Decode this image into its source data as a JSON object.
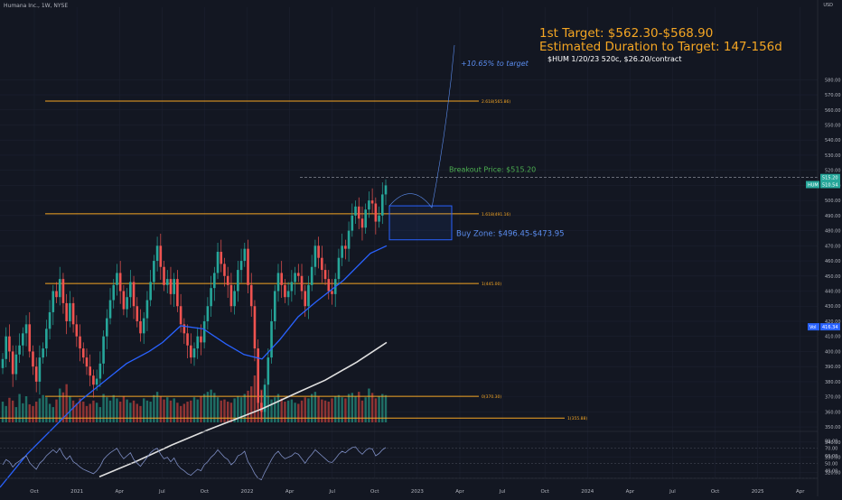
{
  "header": {
    "symbol_title": "Humana Inc., 1W, NYSE",
    "currency": "USD"
  },
  "annotations": {
    "target": "1st Target: $562.30-$568.90",
    "duration": "Estimated Duration to Target: 147-156d",
    "option": "$HUM 1/20/23 520c, $26.20/contract",
    "percent": "+10.65% to target",
    "breakout": "Breakout Price: $515.20",
    "buy_zone": "Buy Zone: $496.45-$473.95"
  },
  "colors": {
    "background": "#131722",
    "fib": "#f5a623",
    "up": "#26a69a",
    "down": "#ef5350",
    "ma_fast": "#2962ff",
    "ma_slow": "#e0e0e0",
    "buy_zone": "#2962ff",
    "breakout": "#4caf50",
    "rsi": "#7e8ec4"
  },
  "chart_data": {
    "type": "candlestick",
    "symbol": "HUM",
    "interval": "1W",
    "ylim": [
      312,
      583
    ],
    "y_ticks": [
      320,
      330,
      340,
      350,
      360,
      370,
      380,
      390,
      400,
      410,
      420,
      430,
      440,
      450,
      460,
      470,
      480,
      490,
      500,
      510,
      520,
      530,
      540,
      550,
      560,
      570,
      580
    ],
    "x_ticks": [
      "Oct",
      "2021",
      "Apr",
      "Jul",
      "Oct",
      "2022",
      "Apr",
      "Jul",
      "Oct",
      "2023",
      "Apr",
      "Jul",
      "Oct",
      "2024",
      "Apr",
      "Jul",
      "Oct",
      "2025",
      "Apr"
    ],
    "fib_levels": [
      {
        "label": "2.618(565.86)",
        "value": 565.86
      },
      {
        "label": "1.618(491.16)",
        "value": 491.16
      },
      {
        "label": "1(445.00)",
        "value": 445.0
      },
      {
        "label": "0(370.30)",
        "value": 370.3
      },
      {
        "label": "1(355.88)",
        "value": 355.88
      }
    ],
    "price_labels": [
      {
        "label": "515.20",
        "value": 515.2
      },
      {
        "label": "510.54",
        "value": 510.54
      },
      {
        "label": "HUM",
        "value": 510.54
      },
      {
        "label": "416.34",
        "value": 416.34
      },
      {
        "label": "Vol",
        "value": 416.34
      }
    ],
    "breakout_price": 515.2,
    "buy_zone": [
      473.95,
      496.45
    ],
    "closes": [
      395,
      410,
      400,
      385,
      398,
      404,
      412,
      418,
      400,
      390,
      380,
      396,
      402,
      415,
      426,
      440,
      436,
      448,
      432,
      420,
      432,
      418,
      410,
      402,
      396,
      390,
      384,
      378,
      382,
      392,
      410,
      422,
      434,
      444,
      452,
      440,
      428,
      436,
      446,
      430,
      420,
      412,
      422,
      434,
      446,
      460,
      470,
      456,
      444,
      448,
      438,
      448,
      430,
      418,
      412,
      404,
      396,
      402,
      410,
      406,
      420,
      430,
      442,
      452,
      466,
      458,
      450,
      444,
      430,
      440,
      454,
      460,
      468,
      444,
      430,
      402,
      366,
      360,
      378,
      396,
      420,
      440,
      452,
      444,
      436,
      440,
      446,
      452,
      450,
      440,
      430,
      444,
      456,
      470,
      462,
      454,
      448,
      440,
      438,
      448,
      462,
      470,
      468,
      480,
      490,
      496,
      488,
      482,
      494,
      500,
      498,
      486,
      490,
      504,
      510
    ],
    "ma_fast": [
      [
        0,
        310
      ],
      [
        30,
        332
      ],
      [
        60,
        350
      ],
      [
        90,
        368
      ],
      [
        115,
        380
      ],
      [
        140,
        392
      ],
      [
        165,
        400
      ],
      [
        180,
        406
      ],
      [
        200,
        417
      ],
      [
        225,
        415
      ],
      [
        250,
        405
      ],
      [
        270,
        398
      ],
      [
        290,
        395
      ],
      [
        310,
        408
      ],
      [
        330,
        423
      ],
      [
        350,
        433
      ],
      [
        380,
        447
      ],
      [
        410,
        465
      ],
      [
        428,
        470
      ]
    ],
    "ma_slow": [
      [
        110,
        317
      ],
      [
        150,
        327
      ],
      [
        190,
        338
      ],
      [
        230,
        348
      ],
      [
        260,
        355
      ],
      [
        290,
        362
      ],
      [
        330,
        373
      ],
      [
        360,
        381
      ],
      [
        395,
        393
      ],
      [
        428,
        406
      ]
    ],
    "volume": [
      38,
      30,
      45,
      40,
      28,
      52,
      35,
      48,
      33,
      30,
      38,
      44,
      50,
      46,
      34,
      28,
      42,
      62,
      55,
      70,
      48,
      40,
      35,
      44,
      38,
      30,
      34,
      40,
      36,
      28,
      52,
      46,
      40,
      50,
      44,
      38,
      48,
      42,
      36,
      40,
      34,
      30,
      44,
      40,
      38,
      50,
      56,
      48,
      42,
      46,
      40,
      44,
      36,
      30,
      34,
      38,
      40,
      46,
      42,
      48,
      52,
      56,
      60,
      54,
      46,
      40,
      42,
      38,
      36,
      44,
      48,
      46,
      52,
      58,
      66,
      86,
      72,
      60,
      54,
      48,
      42,
      46,
      52,
      44,
      38,
      40,
      42,
      36,
      34,
      40,
      46,
      44,
      52,
      56,
      48,
      42,
      40,
      38,
      44,
      48,
      50,
      46,
      44,
      52,
      54,
      48,
      56,
      40,
      46,
      62,
      54,
      44,
      48,
      52,
      50
    ],
    "rsi": {
      "ticks": [
        80.0,
        70.0,
        60.0,
        50.0,
        40.0
      ],
      "levels": [
        70,
        50,
        30
      ],
      "values": [
        48,
        55,
        52,
        45,
        50,
        53,
        57,
        60,
        51,
        46,
        42,
        50,
        54,
        60,
        64,
        68,
        64,
        70,
        61,
        55,
        60,
        52,
        49,
        45,
        42,
        40,
        38,
        36,
        40,
        46,
        55,
        60,
        64,
        67,
        70,
        62,
        56,
        60,
        64,
        55,
        50,
        46,
        52,
        58,
        64,
        68,
        70,
        62,
        56,
        58,
        52,
        57,
        48,
        43,
        40,
        36,
        34,
        38,
        42,
        40,
        48,
        52,
        58,
        62,
        68,
        63,
        58,
        55,
        48,
        52,
        60,
        62,
        66,
        52,
        45,
        36,
        30,
        28,
        38,
        46,
        55,
        62,
        66,
        60,
        56,
        58,
        60,
        64,
        62,
        56,
        50,
        57,
        62,
        68,
        64,
        60,
        56,
        52,
        51,
        56,
        62,
        66,
        64,
        68,
        71,
        72,
        66,
        62,
        67,
        70,
        69,
        60,
        63,
        68,
        71
      ]
    }
  }
}
